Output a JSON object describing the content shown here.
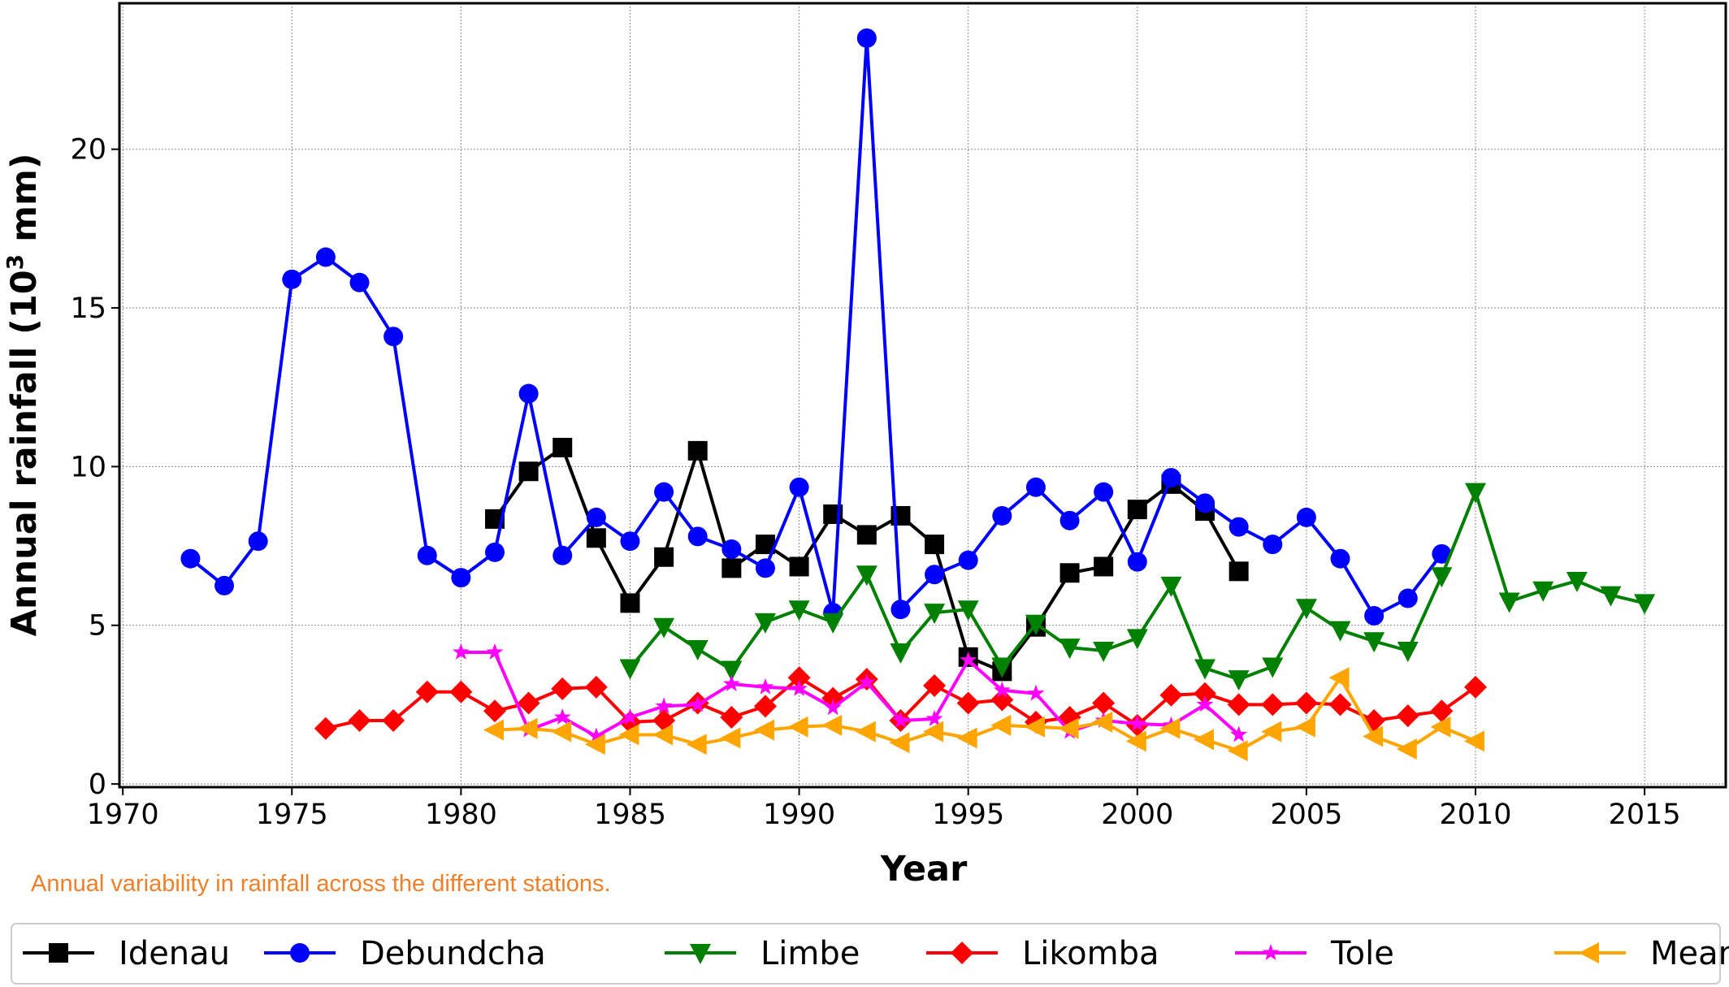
{
  "chart_data": {
    "type": "line",
    "title": "",
    "xlabel": "Year",
    "ylabel": "Annual rainfall (10",
    "ylabel_sup": "3",
    "ylabel_end": " mm)",
    "caption": "Annual variability in rainfall across the different stations.",
    "xlim": [
      1969.9,
      2017.4
    ],
    "ylim": [
      -0.1,
      24.6
    ],
    "xticks": [
      1970,
      1975,
      1980,
      1985,
      1990,
      1995,
      2000,
      2005,
      2010,
      2015
    ],
    "yticks": [
      0,
      5,
      10,
      15,
      20
    ],
    "grid": true,
    "legend_position": "bottom",
    "series": [
      {
        "name": "Idenau",
        "color": "#000000",
        "marker": "square",
        "x": [
          1981,
          1982,
          1983,
          1984,
          1985,
          1986,
          1987,
          1988,
          1989,
          1990,
          1991,
          1992,
          1993,
          1994,
          1995,
          1996,
          1997,
          1998,
          1999,
          2000,
          2001,
          2002,
          2003
        ],
        "y": [
          8.35,
          9.85,
          10.6,
          7.75,
          5.7,
          7.15,
          10.5,
          6.8,
          7.55,
          6.85,
          8.5,
          7.85,
          8.45,
          7.55,
          4.0,
          3.55,
          4.95,
          6.65,
          6.85,
          8.65,
          9.45,
          8.6,
          6.7
        ]
      },
      {
        "name": "Debundcha",
        "color": "#0000ff",
        "marker": "circle",
        "x": [
          1972,
          1973,
          1974,
          1975,
          1976,
          1977,
          1978,
          1979,
          1980,
          1981,
          1982,
          1983,
          1984,
          1985,
          1986,
          1987,
          1988,
          1989,
          1990,
          1991,
          1992,
          1993,
          1994,
          1995,
          1996,
          1997,
          1998,
          1999,
          2000,
          2001,
          2002,
          2003,
          2004,
          2005,
          2006,
          2007,
          2008,
          2009
        ],
        "y": [
          7.1,
          6.25,
          7.65,
          15.9,
          16.6,
          15.8,
          14.1,
          7.2,
          6.5,
          7.3,
          12.3,
          7.2,
          8.4,
          7.65,
          9.2,
          7.8,
          7.4,
          6.8,
          9.35,
          5.4,
          23.5,
          5.5,
          6.6,
          7.05,
          8.45,
          9.35,
          8.3,
          9.2,
          7.0,
          9.65,
          8.85,
          8.1,
          7.55,
          8.4,
          7.1,
          5.3,
          5.85,
          7.25
        ]
      },
      {
        "name": "Limbe",
        "color": "#008000",
        "marker": "triangle-down",
        "x": [
          1985,
          1986,
          1987,
          1988,
          1989,
          1990,
          1991,
          1992,
          1993,
          1994,
          1995,
          1996,
          1997,
          1998,
          1999,
          2000,
          2001,
          2002,
          2003,
          2004,
          2005,
          2006,
          2007,
          2008,
          2009,
          2010,
          2011,
          2012,
          2013,
          2014,
          2015
        ],
        "y": [
          3.65,
          4.95,
          4.25,
          3.6,
          5.1,
          5.5,
          5.1,
          6.6,
          4.15,
          5.4,
          5.5,
          3.7,
          5.05,
          4.3,
          4.2,
          4.6,
          6.25,
          3.65,
          3.3,
          3.7,
          5.55,
          4.85,
          4.5,
          4.2,
          6.55,
          9.2,
          5.75,
          6.1,
          6.4,
          5.95,
          5.7
        ]
      },
      {
        "name": "Likomba",
        "color": "#ff0000",
        "marker": "diamond",
        "x": [
          1976,
          1977,
          1978,
          1979,
          1980,
          1981,
          1982,
          1983,
          1984,
          1985,
          1986,
          1987,
          1988,
          1989,
          1990,
          1991,
          1992,
          1993,
          1994,
          1995,
          1996,
          1997,
          1998,
          1999,
          2000,
          2001,
          2002,
          2003,
          2004,
          2005,
          2006,
          2007,
          2008,
          2009,
          2010
        ],
        "y": [
          1.75,
          2.0,
          2.0,
          2.9,
          2.9,
          2.3,
          2.55,
          3.0,
          3.05,
          1.95,
          2.0,
          2.55,
          2.1,
          2.45,
          3.35,
          2.7,
          3.3,
          2.0,
          3.1,
          2.55,
          2.65,
          1.95,
          2.1,
          2.55,
          1.85,
          2.8,
          2.85,
          2.5,
          2.5,
          2.55,
          2.5,
          2.0,
          2.15,
          2.3,
          3.05
        ]
      },
      {
        "name": "Tole",
        "color": "#ff00ff",
        "marker": "star",
        "x": [
          1980,
          1981,
          1982,
          1983,
          1984,
          1985,
          1986,
          1987,
          1988,
          1989,
          1990,
          1991,
          1992,
          1993,
          1994,
          1995,
          1996,
          1997,
          1998,
          1999,
          2000,
          2001,
          2002,
          2003
        ],
        "y": [
          4.15,
          4.15,
          1.7,
          2.1,
          1.5,
          2.1,
          2.45,
          2.5,
          3.15,
          3.05,
          3.0,
          2.4,
          3.2,
          2.0,
          2.05,
          3.9,
          2.95,
          2.85,
          1.65,
          2.0,
          1.9,
          1.85,
          2.5,
          1.55
        ]
      },
      {
        "name": "Meanja",
        "color": "#ffa500",
        "marker": "triangle-left",
        "x": [
          1981,
          1982,
          1983,
          1984,
          1985,
          1986,
          1987,
          1988,
          1989,
          1990,
          1991,
          1992,
          1993,
          1994,
          1995,
          1996,
          1997,
          1998,
          1999,
          2000,
          2001,
          2002,
          2003,
          2004,
          2005,
          2006,
          2007,
          2008,
          2009,
          2010
        ],
        "y": [
          1.7,
          1.75,
          1.65,
          1.25,
          1.55,
          1.55,
          1.25,
          1.45,
          1.7,
          1.8,
          1.85,
          1.65,
          1.3,
          1.65,
          1.45,
          1.85,
          1.8,
          1.75,
          1.95,
          1.35,
          1.75,
          1.4,
          1.05,
          1.65,
          1.8,
          3.35,
          1.5,
          1.1,
          1.8,
          1.35
        ]
      }
    ]
  }
}
